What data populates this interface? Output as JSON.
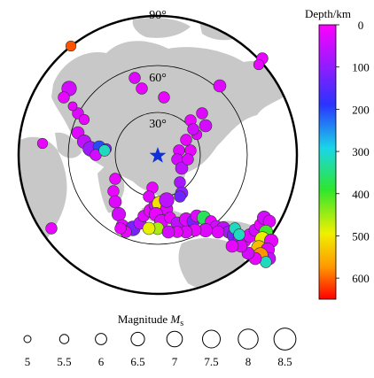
{
  "map": {
    "ring_labels": [
      "90°",
      "60°",
      "30°"
    ],
    "station_color": "#1230d8",
    "land_color": "#c8c8c8",
    "ocean_color": "#ffffff"
  },
  "colorbar": {
    "title": "Depth/km",
    "ticks": [
      "0",
      "100",
      "200",
      "300",
      "400",
      "500",
      "600"
    ],
    "tick_values": [
      0,
      100,
      200,
      300,
      400,
      500,
      600
    ],
    "range": [
      0,
      650
    ],
    "colors": [
      "#ff00ff",
      "#9a1aff",
      "#2a33ff",
      "#1ad6e8",
      "#2ee62e",
      "#f0f000",
      "#ff9a00",
      "#ff0000"
    ]
  },
  "legend": {
    "title_prefix": "Magnitude ",
    "title_symbol": "M",
    "title_subscript": "s",
    "labels": [
      "5",
      "5.5",
      "6",
      "6.5",
      "7",
      "7.5",
      "8",
      "8.5"
    ],
    "magnitudes": [
      5,
      5.5,
      6,
      6.5,
      7,
      7.5,
      8,
      8.5
    ]
  }
}
